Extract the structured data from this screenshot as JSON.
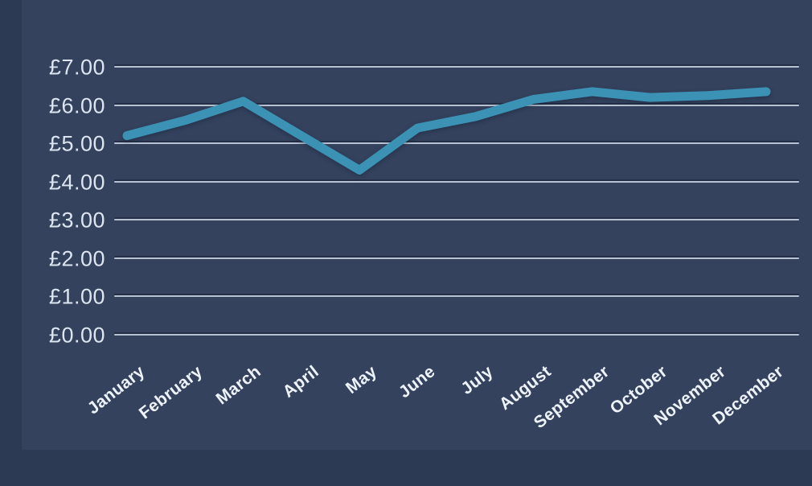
{
  "chart_data": {
    "type": "line",
    "categories": [
      "January",
      "February",
      "March",
      "April",
      "May",
      "June",
      "July",
      "August",
      "September",
      "October",
      "November",
      "December"
    ],
    "values": [
      5.2,
      5.6,
      6.1,
      5.2,
      4.3,
      5.4,
      5.7,
      6.15,
      6.35,
      6.2,
      6.25,
      6.35
    ],
    "title": "",
    "xlabel": "",
    "ylabel": "",
    "ylim": [
      0,
      7
    ],
    "y_ticks": [
      {
        "value": 7,
        "label": "£7.00"
      },
      {
        "value": 6,
        "label": "£6.00"
      },
      {
        "value": 5,
        "label": "£5.00"
      },
      {
        "value": 4,
        "label": "£4.00"
      },
      {
        "value": 3,
        "label": "£3.00"
      },
      {
        "value": 2,
        "label": "£2.00"
      },
      {
        "value": 1,
        "label": "£1.00"
      },
      {
        "value": 0,
        "label": "£0.00"
      }
    ],
    "currency_symbol": "£",
    "grid": true,
    "legend": false,
    "line_color": "#3C92B4"
  },
  "colors": {
    "background": "#2D3A54",
    "panel": "#34425E",
    "gridline": "#B7C2D3",
    "gridline_shadow": "rgba(26,35,56,0.6)",
    "axis_text": "#DCE5F0",
    "month_text": "#EEF3FA"
  }
}
